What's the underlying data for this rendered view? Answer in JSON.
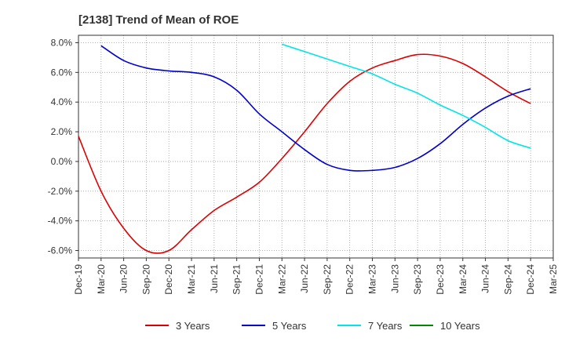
{
  "chart_data": {
    "type": "line",
    "title": "[2138]  Trend of Mean of ROE",
    "xlabel": "",
    "ylabel": "",
    "x": [
      "Dec-19",
      "Mar-20",
      "Jun-20",
      "Sep-20",
      "Dec-20",
      "Mar-21",
      "Jun-21",
      "Sep-21",
      "Dec-21",
      "Mar-22",
      "Jun-22",
      "Sep-22",
      "Dec-22",
      "Mar-23",
      "Jun-23",
      "Sep-23",
      "Dec-23",
      "Mar-24",
      "Jun-24",
      "Sep-24",
      "Dec-24",
      "Mar-25"
    ],
    "ylim": [
      -6.5,
      8.5
    ],
    "yticks": [
      8.0,
      6.0,
      4.0,
      2.0,
      0.0,
      -2.0,
      -4.0,
      -6.0
    ],
    "ytick_labels": [
      "8.0%",
      "6.0%",
      "4.0%",
      "2.0%",
      "0.0%",
      "-2.0%",
      "-4.0%",
      "-6.0%"
    ],
    "grid": true,
    "legend_position": "bottom",
    "series": [
      {
        "name": "3 Years",
        "color": "#dd0000",
        "values": [
          1.7,
          -2.0,
          -4.5,
          -6.0,
          -6.0,
          -4.6,
          -3.3,
          -2.4,
          -1.4,
          0.2,
          2.0,
          3.9,
          5.4,
          6.3,
          6.8,
          7.2,
          7.1,
          6.6,
          5.7,
          4.7,
          3.9,
          null
        ]
      },
      {
        "name": "5 Years",
        "color": "#0000cc",
        "values": [
          null,
          7.8,
          6.8,
          6.3,
          6.1,
          6.0,
          5.7,
          4.8,
          3.2,
          2.0,
          0.8,
          -0.2,
          -0.6,
          -0.6,
          -0.4,
          0.2,
          1.2,
          2.5,
          3.6,
          4.4,
          4.9,
          null
        ]
      },
      {
        "name": "7 Years",
        "color": "#00e5e5",
        "values": [
          null,
          null,
          null,
          null,
          null,
          null,
          null,
          null,
          null,
          7.9,
          7.4,
          6.9,
          6.4,
          5.9,
          5.2,
          4.6,
          3.8,
          3.1,
          2.3,
          1.4,
          0.9,
          null
        ]
      },
      {
        "name": "10 Years",
        "color": "#008800",
        "values": [
          null,
          null,
          null,
          null,
          null,
          null,
          null,
          null,
          null,
          null,
          null,
          null,
          null,
          null,
          null,
          null,
          null,
          null,
          null,
          null,
          null,
          null
        ]
      }
    ]
  }
}
